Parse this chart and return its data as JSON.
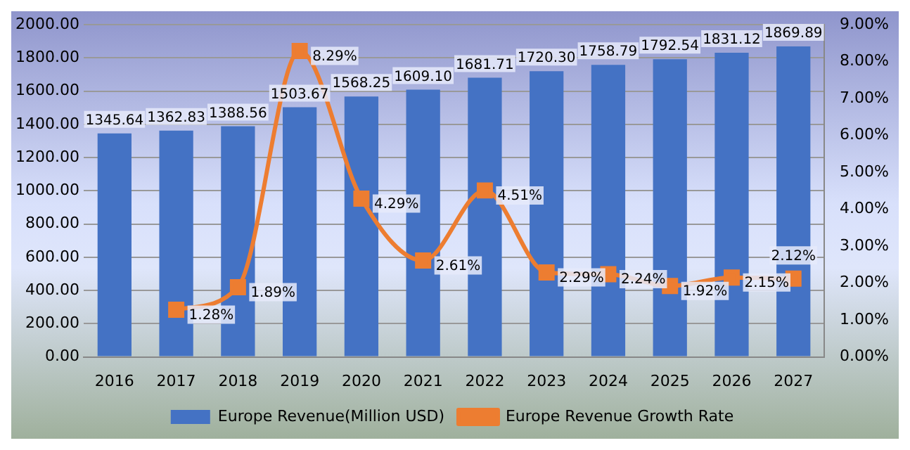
{
  "chart_data": {
    "type": "bar",
    "categories": [
      "2016",
      "2017",
      "2018",
      "2019",
      "2020",
      "2021",
      "2022",
      "2023",
      "2024",
      "2025",
      "2026",
      "2027"
    ],
    "series": [
      {
        "name": "Europe Revenue(Million USD)",
        "color": "#4472c4",
        "values": [
          1345.64,
          1362.83,
          1388.56,
          1503.67,
          1568.25,
          1609.1,
          1681.71,
          1720.3,
          1758.79,
          1792.54,
          1831.12,
          1869.89
        ],
        "value_labels": [
          "1345.64",
          "1362.83",
          "1388.56",
          "1503.67",
          "1568.25",
          "1609.10",
          "1681.71",
          "1720.30",
          "1758.79",
          "1792.54",
          "1831.12",
          "1869.89"
        ]
      },
      {
        "name": "Europe Revenue Growth Rate",
        "type": "line",
        "axis": "y2",
        "color": "#ed7d31",
        "marker": "square",
        "values": [
          null,
          1.28,
          1.89,
          8.29,
          4.29,
          2.61,
          4.51,
          2.29,
          2.24,
          1.92,
          2.15,
          2.12
        ],
        "value_labels": [
          null,
          "1.28%",
          "1.89%",
          "8.29%",
          "4.29%",
          "2.61%",
          "4.51%",
          "2.29%",
          "2.24%",
          "1.92%",
          "2.15%",
          "2.12%"
        ]
      }
    ],
    "ylim": [
      0,
      2000
    ],
    "yticks": [
      {
        "value": 0,
        "label": "0.00"
      },
      {
        "value": 200,
        "label": "200.00"
      },
      {
        "value": 400,
        "label": "400.00"
      },
      {
        "value": 600,
        "label": "600.00"
      },
      {
        "value": 800,
        "label": "800.00"
      },
      {
        "value": 1000,
        "label": "1000.00"
      },
      {
        "value": 1200,
        "label": "1200.00"
      },
      {
        "value": 1400,
        "label": "1400.00"
      },
      {
        "value": 1600,
        "label": "1600.00"
      },
      {
        "value": 1800,
        "label": "1800.00"
      },
      {
        "value": 2000,
        "label": "2000.00"
      }
    ],
    "y2lim": [
      0,
      9
    ],
    "y2ticks": [
      {
        "value": 0,
        "label": "0.00%"
      },
      {
        "value": 1,
        "label": "1.00%"
      },
      {
        "value": 2,
        "label": "2.00%"
      },
      {
        "value": 3,
        "label": "3.00%"
      },
      {
        "value": 4,
        "label": "4.00%"
      },
      {
        "value": 5,
        "label": "5.00%"
      },
      {
        "value": 6,
        "label": "6.00%"
      },
      {
        "value": 7,
        "label": "7.00%"
      },
      {
        "value": 8,
        "label": "8.00%"
      },
      {
        "value": 9,
        "label": "9.00%"
      }
    ],
    "grid": "y",
    "legend": "bottom"
  }
}
